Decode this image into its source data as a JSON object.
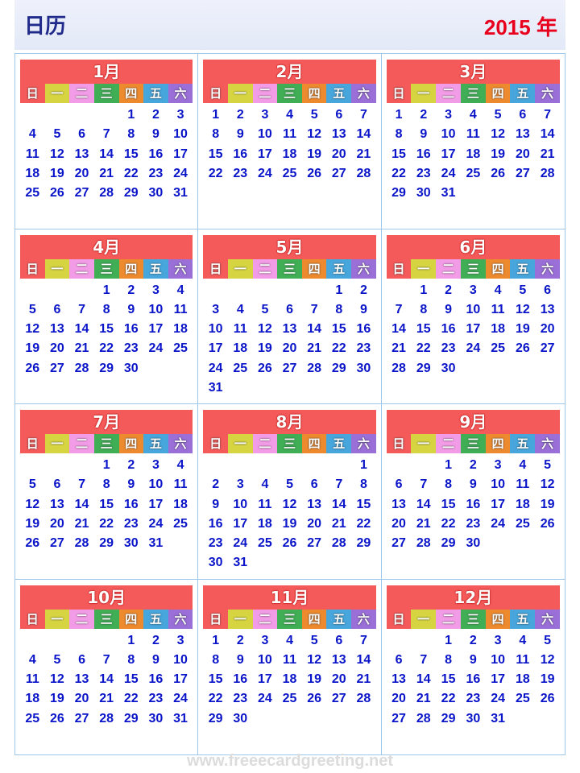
{
  "header": {
    "title": "日历",
    "year": "2015 年"
  },
  "weekdays": [
    "日",
    "一",
    "二",
    "三",
    "四",
    "五",
    "六"
  ],
  "weekday_colors": [
    "#f55a5a",
    "#d6d440",
    "#f29be6",
    "#3fae55",
    "#ee8a2e",
    "#47a6dc",
    "#9a6fd8"
  ],
  "months": [
    {
      "label": "1月",
      "start": 4,
      "days": 31
    },
    {
      "label": "2月",
      "start": 0,
      "days": 28
    },
    {
      "label": "3月",
      "start": 0,
      "days": 31
    },
    {
      "label": "4月",
      "start": 3,
      "days": 30
    },
    {
      "label": "5月",
      "start": 5,
      "days": 31
    },
    {
      "label": "6月",
      "start": 1,
      "days": 30
    },
    {
      "label": "7月",
      "start": 3,
      "days": 31
    },
    {
      "label": "8月",
      "start": 6,
      "days": 31
    },
    {
      "label": "9月",
      "start": 2,
      "days": 30
    },
    {
      "label": "10月",
      "start": 4,
      "days": 31
    },
    {
      "label": "11月",
      "start": 0,
      "days": 30
    },
    {
      "label": "12月",
      "start": 2,
      "days": 31
    }
  ],
  "watermark": "www.freeecardgreeting.net"
}
